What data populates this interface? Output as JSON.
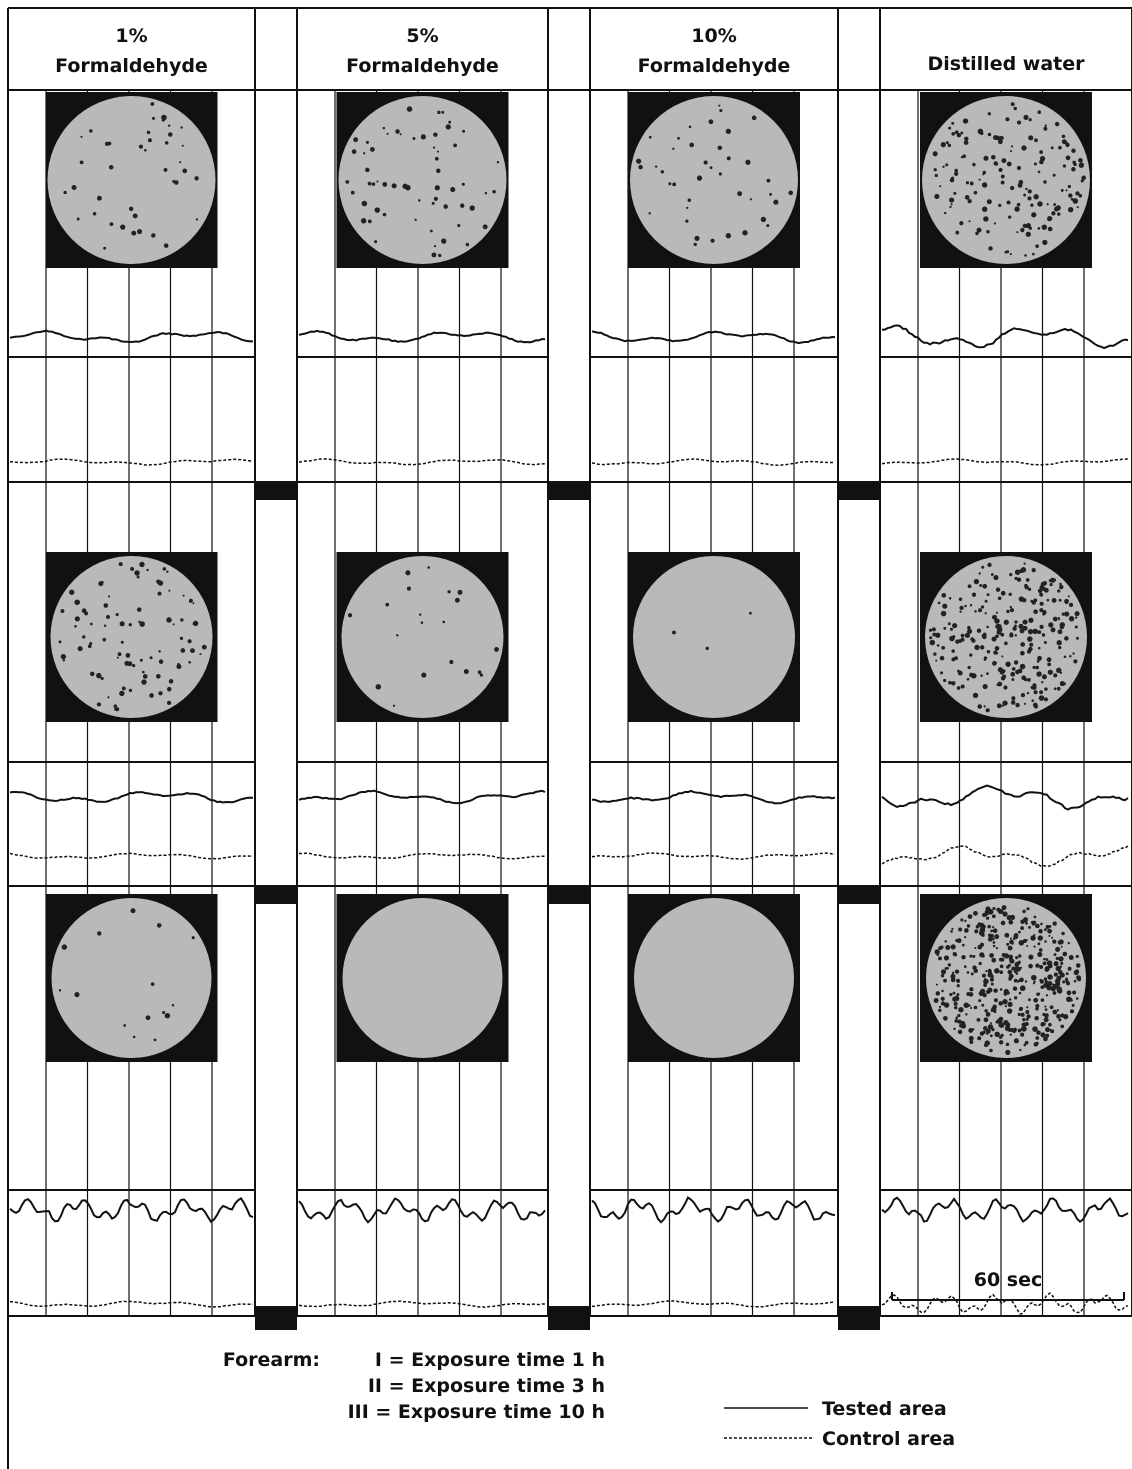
{
  "headers": [
    {
      "line1": "1%",
      "line2": "Formaldehyde"
    },
    {
      "line1": "5%",
      "line2": "Formaldehyde"
    },
    {
      "line1": "10%",
      "line2": "Formaldehyde"
    },
    {
      "line1": "Distilled water"
    }
  ],
  "scale_label": "60 sec",
  "notes": {
    "lead": "Forearm:",
    "items": [
      "I = Exposure time 1 h",
      "II = Exposure time 3 h",
      "III = Exposure time 10 h"
    ]
  },
  "legend": [
    "Tested area",
    "Control area"
  ]
}
